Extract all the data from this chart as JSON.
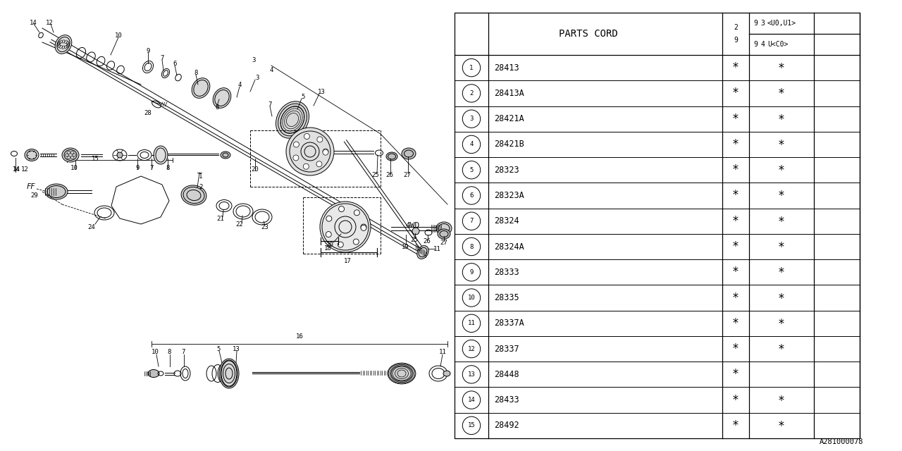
{
  "parts_cord_header": "PARTS CORD",
  "rows": [
    {
      "num": "1",
      "code": "28413",
      "c1": true,
      "c2": true
    },
    {
      "num": "2",
      "code": "28413A",
      "c1": true,
      "c2": true
    },
    {
      "num": "3",
      "code": "28421A",
      "c1": true,
      "c2": true
    },
    {
      "num": "4",
      "code": "28421B",
      "c1": true,
      "c2": true
    },
    {
      "num": "5",
      "code": "28323",
      "c1": true,
      "c2": true
    },
    {
      "num": "6",
      "code": "28323A",
      "c1": true,
      "c2": true
    },
    {
      "num": "7",
      "code": "28324",
      "c1": true,
      "c2": true
    },
    {
      "num": "8",
      "code": "28324A",
      "c1": true,
      "c2": true
    },
    {
      "num": "9",
      "code": "28333",
      "c1": true,
      "c2": true
    },
    {
      "num": "10",
      "code": "28335",
      "c1": true,
      "c2": true
    },
    {
      "num": "11",
      "code": "28337A",
      "c1": true,
      "c2": true
    },
    {
      "num": "12",
      "code": "28337",
      "c1": true,
      "c2": true
    },
    {
      "num": "13",
      "code": "28448",
      "c1": true,
      "c2": false
    },
    {
      "num": "14",
      "code": "28433",
      "c1": true,
      "c2": true
    },
    {
      "num": "15",
      "code": "28492",
      "c1": true,
      "c2": true
    }
  ],
  "ref_code": "A281000078",
  "bg_color": "#ffffff",
  "lc": "#000000"
}
